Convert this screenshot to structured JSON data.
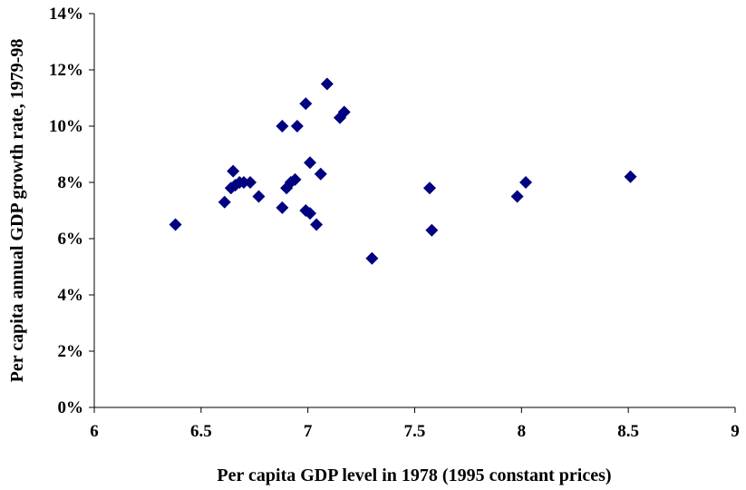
{
  "chart_data": {
    "type": "scatter",
    "title": "",
    "xlabel": "Per capita GDP level in 1978 (1995 constant prices)",
    "ylabel": "Per capita annual GDP growth rate, 1979-98",
    "xlim": [
      6,
      9
    ],
    "ylim": [
      0,
      0.14
    ],
    "x_ticks": [
      {
        "value": 6,
        "label": "6"
      },
      {
        "value": 6.5,
        "label": "6.5"
      },
      {
        "value": 7,
        "label": "7"
      },
      {
        "value": 7.5,
        "label": "7.5"
      },
      {
        "value": 8,
        "label": "8"
      },
      {
        "value": 8.5,
        "label": "8.5"
      },
      {
        "value": 9,
        "label": "9"
      }
    ],
    "y_ticks": [
      {
        "value": 0,
        "label": "0%"
      },
      {
        "value": 0.02,
        "label": "2%"
      },
      {
        "value": 0.04,
        "label": "4%"
      },
      {
        "value": 0.06,
        "label": "6%"
      },
      {
        "value": 0.08,
        "label": "8%"
      },
      {
        "value": 0.1,
        "label": "10%"
      },
      {
        "value": 0.12,
        "label": "12%"
      },
      {
        "value": 0.14,
        "label": "14%"
      }
    ],
    "grid": false,
    "legend": "none",
    "marker": "diamond",
    "marker_color": "#000080",
    "series": [
      {
        "points": [
          {
            "x": 6.38,
            "y": 0.065
          },
          {
            "x": 6.61,
            "y": 0.073
          },
          {
            "x": 6.64,
            "y": 0.078
          },
          {
            "x": 6.65,
            "y": 0.084
          },
          {
            "x": 6.66,
            "y": 0.079
          },
          {
            "x": 6.68,
            "y": 0.08
          },
          {
            "x": 6.7,
            "y": 0.08
          },
          {
            "x": 6.73,
            "y": 0.08
          },
          {
            "x": 6.77,
            "y": 0.075
          },
          {
            "x": 6.88,
            "y": 0.071
          },
          {
            "x": 6.88,
            "y": 0.1
          },
          {
            "x": 6.9,
            "y": 0.078
          },
          {
            "x": 6.92,
            "y": 0.08
          },
          {
            "x": 6.94,
            "y": 0.081
          },
          {
            "x": 6.95,
            "y": 0.1
          },
          {
            "x": 6.99,
            "y": 0.108
          },
          {
            "x": 6.99,
            "y": 0.07
          },
          {
            "x": 7.01,
            "y": 0.069
          },
          {
            "x": 7.01,
            "y": 0.087
          },
          {
            "x": 7.04,
            "y": 0.065
          },
          {
            "x": 7.06,
            "y": 0.083
          },
          {
            "x": 7.09,
            "y": 0.115
          },
          {
            "x": 7.15,
            "y": 0.103
          },
          {
            "x": 7.17,
            "y": 0.105
          },
          {
            "x": 7.3,
            "y": 0.053
          },
          {
            "x": 7.57,
            "y": 0.078
          },
          {
            "x": 7.58,
            "y": 0.063
          },
          {
            "x": 7.98,
            "y": 0.075
          },
          {
            "x": 8.02,
            "y": 0.08
          },
          {
            "x": 8.51,
            "y": 0.082
          }
        ]
      }
    ]
  }
}
